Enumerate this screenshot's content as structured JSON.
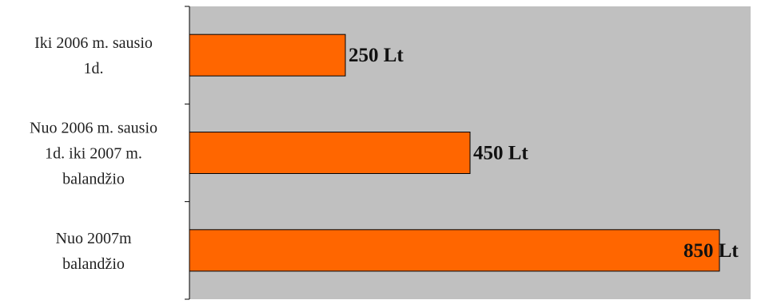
{
  "chart_data": {
    "type": "bar",
    "orientation": "horizontal",
    "categories": [
      [
        "Iki 2006 m. sausio",
        "1d."
      ],
      [
        "Nuo 2006 m. sausio",
        "1d. iki 2007 m.",
        "balandžio"
      ],
      [
        "Nuo 2007m",
        "balandžio"
      ]
    ],
    "values": [
      250,
      450,
      850
    ],
    "data_labels": [
      "250 Lt",
      "450 Lt",
      "850 Lt"
    ],
    "title": "",
    "xlabel": "",
    "ylabel": "",
    "xlim": [
      0,
      900
    ],
    "grid": false,
    "legend": "none",
    "colors": {
      "plot_area": "#c0c0c0",
      "bar_fill": "#ff6600",
      "bar_stroke": "#000000",
      "axis": "#000000"
    }
  }
}
